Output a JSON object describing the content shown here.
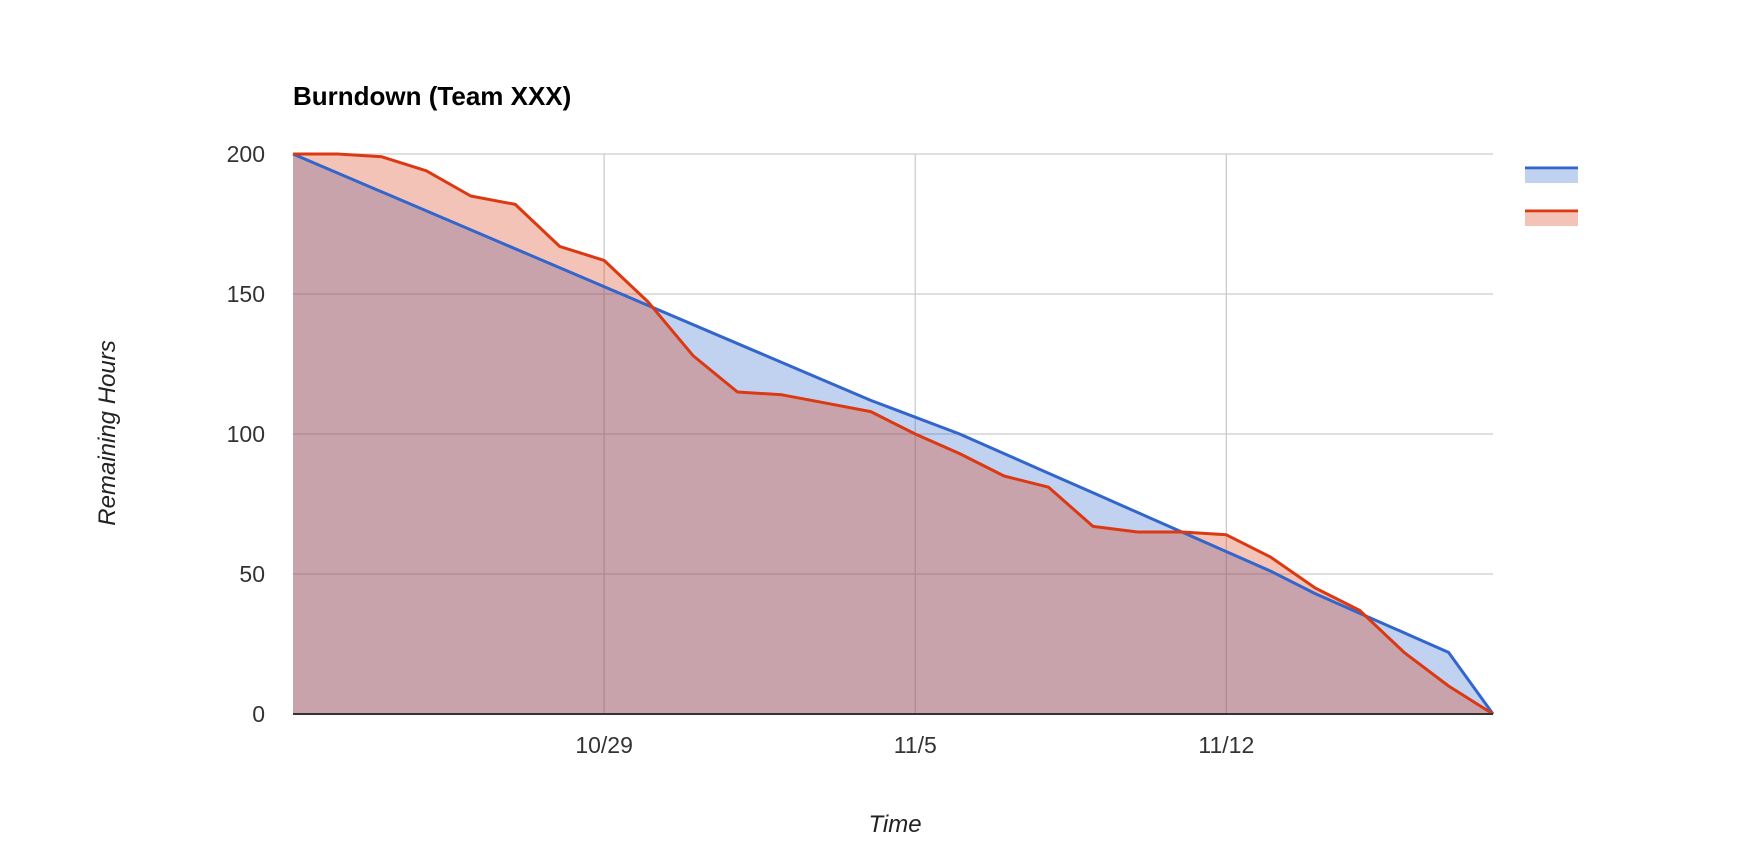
{
  "chart_data": {
    "type": "area",
    "title": "Burndown (Team XXX)",
    "xlabel": "Time",
    "ylabel": "Remaining Hours",
    "x_tick_labels": [
      {
        "day": 7,
        "label": "10/29"
      },
      {
        "day": 14,
        "label": "11/5"
      },
      {
        "day": 21,
        "label": "11/12"
      }
    ],
    "y_ticks": [
      0,
      50,
      100,
      150,
      200
    ],
    "xlim": [
      0,
      27
    ],
    "ylim": [
      0,
      200
    ],
    "grid": true,
    "legend_position": "right",
    "series": [
      {
        "color": "#3366cc",
        "fill": "#3366cc",
        "x": [
          0,
          13,
          14,
          15,
          16,
          17,
          18,
          19,
          20,
          21,
          22,
          23,
          24,
          25,
          26,
          27
        ],
        "values": [
          200,
          112,
          106,
          100,
          93,
          86,
          79,
          72,
          65,
          58,
          51,
          43,
          36,
          29,
          22,
          0
        ]
      },
      {
        "color": "#dc3912",
        "fill": "#dc3912",
        "x": [
          0,
          1,
          2,
          3,
          4,
          5,
          6,
          7,
          8,
          9,
          10,
          11,
          12,
          13,
          14,
          15,
          16,
          17,
          18,
          19,
          20,
          21,
          22,
          23,
          24,
          25,
          26,
          27
        ],
        "values": [
          200,
          200,
          199,
          194,
          185,
          182,
          167,
          162,
          147,
          128,
          115,
          114,
          111,
          108,
          100,
          93,
          85,
          81,
          67,
          65,
          65,
          64,
          56,
          45,
          37,
          22,
          10,
          0
        ]
      }
    ]
  }
}
